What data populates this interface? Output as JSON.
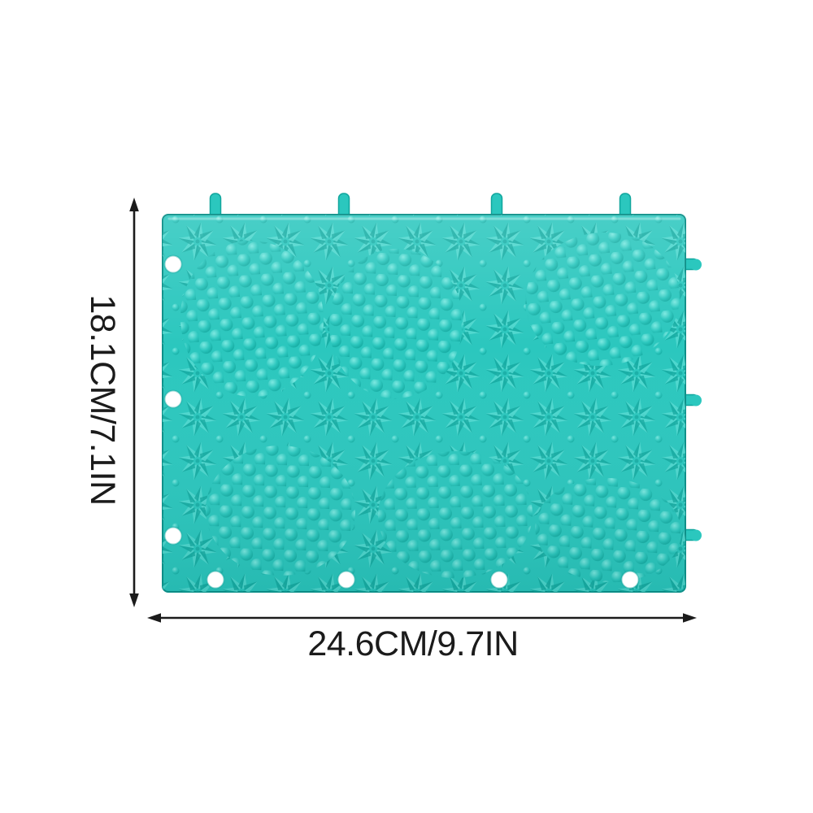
{
  "page": {
    "background": "#ffffff"
  },
  "product": {
    "description": "Teal interlocking foot massage mat tile with starburst relief texture, round massage bumps, connector tabs on the top and right edges, and connector holes on the left and bottom edges",
    "colors": {
      "mat_base": "#2bc7be",
      "mat_light": "#56dbd3",
      "mat_dark": "#11a69d",
      "mat_deep": "#0d9089",
      "bump_highlight": "#7ce9e1",
      "hole_fill": "#ffffff",
      "annotation_ink": "#1b1b1b"
    }
  },
  "dimensions": {
    "height_label": "18.1CM/7.1IN",
    "width_label": "24.6CM/9.7IN"
  }
}
